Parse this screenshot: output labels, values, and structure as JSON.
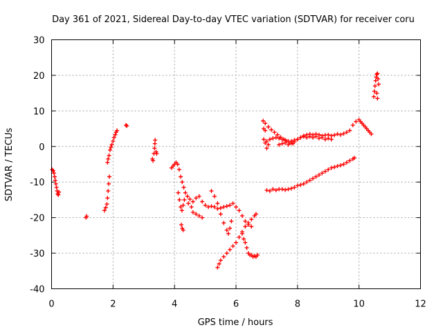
{
  "chart_data": {
    "type": "scatter",
    "title": "Day 361 of 2021, Sidereal Day-to-day VTEC variation (SDTVAR) for receiver coru",
    "xlabel": "GPS time / hours",
    "ylabel": "SDTVAR / TECUs",
    "xlim": [
      0,
      12
    ],
    "ylim": [
      -40,
      30
    ],
    "xticks": [
      0,
      2,
      4,
      6,
      8,
      10,
      12
    ],
    "yticks": [
      -40,
      -30,
      -20,
      -10,
      0,
      10,
      20,
      30
    ],
    "grid": true,
    "marker": "plus",
    "color": "#ff0000",
    "series": [
      {
        "values": [
          [
            0.02,
            -6.5
          ],
          [
            0.05,
            -6.8
          ],
          [
            0.08,
            -7.5
          ],
          [
            0.1,
            -8.5
          ],
          [
            0.12,
            -9.5
          ],
          [
            0.14,
            -10.5
          ],
          [
            0.16,
            -11.5
          ],
          [
            0.18,
            -12.5
          ],
          [
            0.2,
            -13.3
          ],
          [
            0.22,
            -13.6
          ],
          [
            0.24,
            -12.8
          ]
        ]
      },
      {
        "values": [
          [
            1.12,
            -20.0
          ],
          [
            1.14,
            -19.6
          ]
        ]
      },
      {
        "values": [
          [
            1.72,
            -18.0
          ],
          [
            1.76,
            -17.2
          ],
          [
            1.8,
            -16.2
          ],
          [
            1.82,
            -14.5
          ],
          [
            1.84,
            -12.5
          ],
          [
            1.86,
            -10.5
          ],
          [
            1.88,
            -8.5
          ],
          [
            1.82,
            -4.5
          ],
          [
            1.84,
            -3.5
          ],
          [
            1.87,
            -2.5
          ],
          [
            1.9,
            -1.0
          ],
          [
            1.93,
            -0.2
          ],
          [
            1.96,
            0.5
          ],
          [
            2.0,
            1.5
          ],
          [
            2.03,
            2.5
          ],
          [
            2.07,
            3.3
          ],
          [
            2.1,
            4.0
          ],
          [
            2.13,
            4.5
          ]
        ]
      },
      {
        "values": [
          [
            2.42,
            6.0
          ],
          [
            2.45,
            5.8
          ]
        ]
      },
      {
        "values": [
          [
            3.28,
            -3.5
          ],
          [
            3.3,
            -4.0
          ],
          [
            3.33,
            -2.0
          ],
          [
            3.35,
            -0.5
          ],
          [
            3.36,
            0.8
          ],
          [
            3.37,
            1.8
          ],
          [
            3.4,
            -1.5
          ],
          [
            3.42,
            -2.0
          ]
        ]
      },
      {
        "values": [
          [
            3.9,
            -6.0
          ],
          [
            3.95,
            -5.5
          ],
          [
            4.0,
            -5.0
          ],
          [
            4.05,
            -4.5
          ],
          [
            4.1,
            -5.0
          ],
          [
            4.15,
            -6.5
          ],
          [
            4.2,
            -8.5
          ],
          [
            4.25,
            -10.0
          ],
          [
            4.3,
            -11.5
          ],
          [
            4.35,
            -13.0
          ],
          [
            4.42,
            -14.0
          ],
          [
            4.5,
            -14.8
          ],
          [
            4.6,
            -15.5
          ],
          [
            4.7,
            -14.5
          ],
          [
            4.8,
            -14.0
          ],
          [
            4.9,
            -15.5
          ],
          [
            5.0,
            -16.5
          ],
          [
            5.1,
            -17.0
          ],
          [
            5.2,
            -16.8
          ],
          [
            5.3,
            -17.0
          ],
          [
            5.4,
            -17.5
          ],
          [
            5.5,
            -17.3
          ],
          [
            5.6,
            -17.0
          ],
          [
            5.7,
            -16.8
          ],
          [
            5.8,
            -16.5
          ],
          [
            5.9,
            -16.0
          ],
          [
            6.0,
            -17.0
          ],
          [
            6.1,
            -18.0
          ],
          [
            6.2,
            -19.5
          ],
          [
            6.3,
            -21.0
          ],
          [
            6.4,
            -22.0
          ],
          [
            6.5,
            -22.5
          ]
        ]
      },
      {
        "values": [
          [
            4.12,
            -13.0
          ],
          [
            4.16,
            -15.0
          ],
          [
            4.2,
            -17.0
          ],
          [
            4.24,
            -18.0
          ],
          [
            4.28,
            -16.5
          ],
          [
            4.32,
            -15.0
          ]
        ]
      },
      {
        "values": [
          [
            4.22,
            -22.0
          ],
          [
            4.25,
            -23.0
          ],
          [
            4.28,
            -23.5
          ]
        ]
      },
      {
        "values": [
          [
            4.45,
            -16.0
          ],
          [
            4.55,
            -17.0
          ],
          [
            4.6,
            -18.5
          ],
          [
            4.7,
            -19.0
          ],
          [
            4.8,
            -19.5
          ],
          [
            4.9,
            -20.0
          ]
        ]
      },
      {
        "values": [
          [
            5.2,
            -12.5
          ],
          [
            5.3,
            -14.0
          ],
          [
            5.4,
            -16.0
          ],
          [
            5.5,
            -19.0
          ],
          [
            5.6,
            -21.5
          ],
          [
            5.7,
            -23.5
          ],
          [
            5.75,
            -24.5
          ],
          [
            5.8,
            -23.0
          ],
          [
            5.85,
            -21.0
          ]
        ]
      },
      {
        "values": [
          [
            5.4,
            -34.0
          ],
          [
            5.45,
            -33.0
          ],
          [
            5.5,
            -32.0
          ],
          [
            5.6,
            -31.0
          ],
          [
            5.7,
            -30.0
          ],
          [
            5.8,
            -29.0
          ],
          [
            5.9,
            -28.0
          ],
          [
            6.0,
            -27.0
          ],
          [
            6.1,
            -25.5
          ],
          [
            6.2,
            -24.0
          ],
          [
            6.3,
            -22.5
          ],
          [
            6.4,
            -21.5
          ],
          [
            6.5,
            -20.5
          ],
          [
            6.6,
            -19.5
          ],
          [
            6.65,
            -19.0
          ]
        ]
      },
      {
        "values": [
          [
            6.3,
            -27.0
          ],
          [
            6.35,
            -28.5
          ],
          [
            6.4,
            -30.0
          ],
          [
            6.45,
            -30.5
          ],
          [
            6.5,
            -30.5
          ],
          [
            6.55,
            -31.0
          ],
          [
            6.6,
            -30.8
          ],
          [
            6.65,
            -31.0
          ],
          [
            6.7,
            -30.5
          ]
        ]
      },
      {
        "values": [
          [
            6.2,
            -24.5
          ],
          [
            6.25,
            -26.0
          ]
        ]
      },
      {
        "values": [
          [
            6.88,
            7.2
          ],
          [
            6.95,
            6.5
          ],
          [
            7.05,
            5.5
          ],
          [
            7.15,
            4.7
          ],
          [
            7.25,
            4.0
          ],
          [
            7.35,
            3.3
          ],
          [
            7.45,
            2.6
          ],
          [
            7.55,
            2.0
          ],
          [
            7.65,
            1.5
          ],
          [
            7.75,
            1.0
          ],
          [
            7.85,
            0.8
          ]
        ]
      },
      {
        "values": [
          [
            6.9,
            5.0
          ],
          [
            6.95,
            4.5
          ]
        ]
      },
      {
        "values": [
          [
            6.9,
            2.0
          ],
          [
            6.95,
            1.0
          ],
          [
            7.0,
            -0.5
          ],
          [
            7.05,
            0.5
          ]
        ]
      },
      {
        "values": [
          [
            7.0,
            1.5
          ],
          [
            7.1,
            2.0
          ],
          [
            7.2,
            2.3
          ],
          [
            7.3,
            2.5
          ],
          [
            7.4,
            2.3
          ],
          [
            7.5,
            2.0
          ],
          [
            7.6,
            1.8
          ],
          [
            7.7,
            1.5
          ],
          [
            7.8,
            1.5
          ],
          [
            7.9,
            1.8
          ],
          [
            8.0,
            2.0
          ],
          [
            8.1,
            2.5
          ],
          [
            8.2,
            3.0
          ],
          [
            8.3,
            3.3
          ],
          [
            8.4,
            3.5
          ],
          [
            8.5,
            3.3
          ],
          [
            8.6,
            3.5
          ],
          [
            8.7,
            3.3
          ],
          [
            8.8,
            3.0
          ],
          [
            8.9,
            3.2
          ],
          [
            9.0,
            3.3
          ],
          [
            9.1,
            3.0
          ],
          [
            9.2,
            3.2
          ],
          [
            9.3,
            3.5
          ],
          [
            9.4,
            3.3
          ],
          [
            9.5,
            3.6
          ],
          [
            9.6,
            4.0
          ],
          [
            9.7,
            4.5
          ],
          [
            9.8,
            6.0
          ],
          [
            9.9,
            7.0
          ],
          [
            10.0,
            7.5
          ],
          [
            10.05,
            7.0
          ],
          [
            10.1,
            6.5
          ],
          [
            10.15,
            6.0
          ],
          [
            10.2,
            5.5
          ],
          [
            10.25,
            5.0
          ],
          [
            10.3,
            4.5
          ],
          [
            10.35,
            4.0
          ],
          [
            10.4,
            3.5
          ]
        ]
      },
      {
        "values": [
          [
            7.4,
            0.5
          ],
          [
            7.5,
            0.8
          ],
          [
            7.6,
            1.0
          ],
          [
            7.7,
            0.5
          ],
          [
            7.8,
            1.0
          ],
          [
            7.9,
            1.3
          ],
          [
            8.0,
            2.0
          ],
          [
            8.1,
            2.5
          ],
          [
            8.2,
            2.8
          ],
          [
            8.3,
            2.5
          ],
          [
            8.4,
            2.8
          ],
          [
            8.5,
            2.5
          ],
          [
            8.6,
            2.8
          ],
          [
            8.7,
            2.3
          ],
          [
            8.8,
            2.5
          ],
          [
            8.9,
            2.0
          ],
          [
            9.0,
            2.3
          ],
          [
            9.1,
            2.0
          ]
        ]
      },
      {
        "values": [
          [
            7.0,
            -12.3
          ],
          [
            7.1,
            -12.5
          ],
          [
            7.2,
            -12.0
          ],
          [
            7.3,
            -12.3
          ],
          [
            7.4,
            -12.0
          ],
          [
            7.5,
            -12.0
          ],
          [
            7.6,
            -12.2
          ],
          [
            7.7,
            -12.0
          ],
          [
            7.8,
            -11.8
          ],
          [
            7.9,
            -11.5
          ],
          [
            8.0,
            -11.0
          ],
          [
            8.1,
            -10.8
          ],
          [
            8.2,
            -10.5
          ],
          [
            8.3,
            -10.0
          ],
          [
            8.4,
            -9.5
          ],
          [
            8.5,
            -9.0
          ],
          [
            8.6,
            -8.5
          ],
          [
            8.7,
            -8.0
          ],
          [
            8.8,
            -7.5
          ],
          [
            8.9,
            -7.0
          ],
          [
            9.0,
            -6.5
          ],
          [
            9.1,
            -6.0
          ],
          [
            9.2,
            -5.8
          ],
          [
            9.3,
            -5.5
          ],
          [
            9.4,
            -5.3
          ],
          [
            9.5,
            -5.0
          ],
          [
            9.6,
            -4.5
          ],
          [
            9.7,
            -4.0
          ],
          [
            9.8,
            -3.5
          ],
          [
            9.85,
            -3.2
          ]
        ]
      },
      {
        "values": [
          [
            10.48,
            14.0
          ],
          [
            10.5,
            15.5
          ],
          [
            10.52,
            17.0
          ],
          [
            10.54,
            18.5
          ],
          [
            10.56,
            19.5
          ],
          [
            10.58,
            20.3
          ],
          [
            10.6,
            20.5
          ],
          [
            10.62,
            19.0
          ],
          [
            10.64,
            17.5
          ],
          [
            10.58,
            15.0
          ],
          [
            10.6,
            13.5
          ]
        ]
      }
    ]
  }
}
